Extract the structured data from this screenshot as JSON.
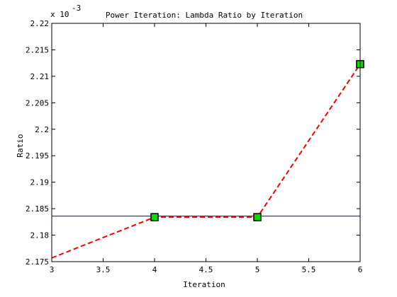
{
  "chart_data": {
    "type": "line",
    "title": "Power Iteration: Lambda Ratio by Iteration",
    "xlabel": "Iteration",
    "ylabel": "Ratio",
    "y_multiplier_label": "x 10",
    "y_multiplier_exponent": "-3",
    "xlim": [
      3,
      6
    ],
    "ylim": [
      0.002175,
      0.00222
    ],
    "x_ticks": [
      3,
      3.5,
      4,
      4.5,
      5,
      5.5,
      6
    ],
    "x_tick_labels": [
      "3",
      "3.5",
      "4",
      "4.5",
      "5",
      "5.5",
      "6"
    ],
    "y_ticks": [
      0.002175,
      0.00218,
      0.002185,
      0.00219,
      0.002195,
      0.0022,
      0.002205,
      0.00221,
      0.002215,
      0.00222
    ],
    "y_tick_labels": [
      "2.175",
      "2.18",
      "2.185",
      "2.19",
      "2.195",
      "2.2",
      "2.205",
      "2.21",
      "2.215",
      "2.22"
    ],
    "grid": false,
    "series": [
      {
        "style": "dashed line with square markers",
        "x": [
          3,
          4,
          5,
          6
        ],
        "y": [
          0.0021757,
          0.0021834,
          0.0021834,
          0.0022123
        ],
        "markers_at": [
          4,
          5,
          6
        ],
        "line_color": "#ff0000",
        "marker_face": "#00dd00",
        "marker_edge": "#000000"
      },
      {
        "style": "solid horizontal reference line",
        "x": [
          3,
          6
        ],
        "y": [
          0.0021836,
          0.0021836
        ],
        "line_color": "#0000cc"
      }
    ]
  }
}
